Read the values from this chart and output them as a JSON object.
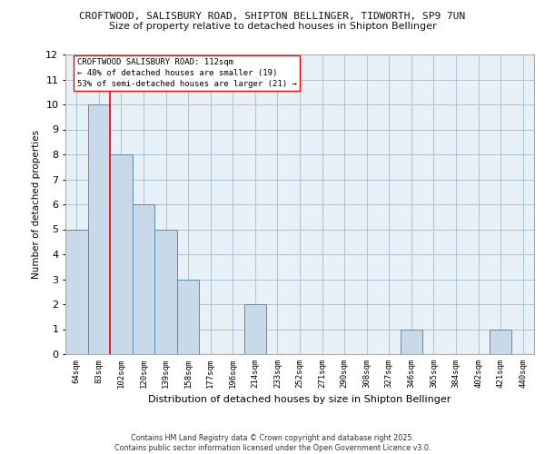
{
  "title_line1": "CROFTWOOD, SALISBURY ROAD, SHIPTON BELLINGER, TIDWORTH, SP9 7UN",
  "title_line2": "Size of property relative to detached houses in Shipton Bellinger",
  "xlabel": "Distribution of detached houses by size in Shipton Bellinger",
  "ylabel": "Number of detached properties",
  "categories": [
    "64sqm",
    "83sqm",
    "102sqm",
    "120sqm",
    "139sqm",
    "158sqm",
    "177sqm",
    "196sqm",
    "214sqm",
    "233sqm",
    "252sqm",
    "271sqm",
    "290sqm",
    "308sqm",
    "327sqm",
    "346sqm",
    "365sqm",
    "384sqm",
    "402sqm",
    "421sqm",
    "440sqm"
  ],
  "values": [
    5,
    10,
    8,
    6,
    5,
    3,
    0,
    0,
    2,
    0,
    0,
    0,
    0,
    0,
    0,
    1,
    0,
    0,
    0,
    1,
    0
  ],
  "bar_color": "#c8d9ea",
  "bar_edge_color": "#5a8ab5",
  "grid_color": "#adc4d8",
  "background_color": "#e8f0f8",
  "red_line_x": 1.5,
  "ylim": [
    0,
    12
  ],
  "yticks": [
    0,
    1,
    2,
    3,
    4,
    5,
    6,
    7,
    8,
    9,
    10,
    11,
    12
  ],
  "annotation_box_text": "CROFTWOOD SALISBURY ROAD: 112sqm\n← 48% of detached houses are smaller (19)\n53% of semi-detached houses are larger (21) →",
  "copyright_text": "Contains HM Land Registry data © Crown copyright and database right 2025.\nContains public sector information licensed under the Open Government Licence v3.0."
}
